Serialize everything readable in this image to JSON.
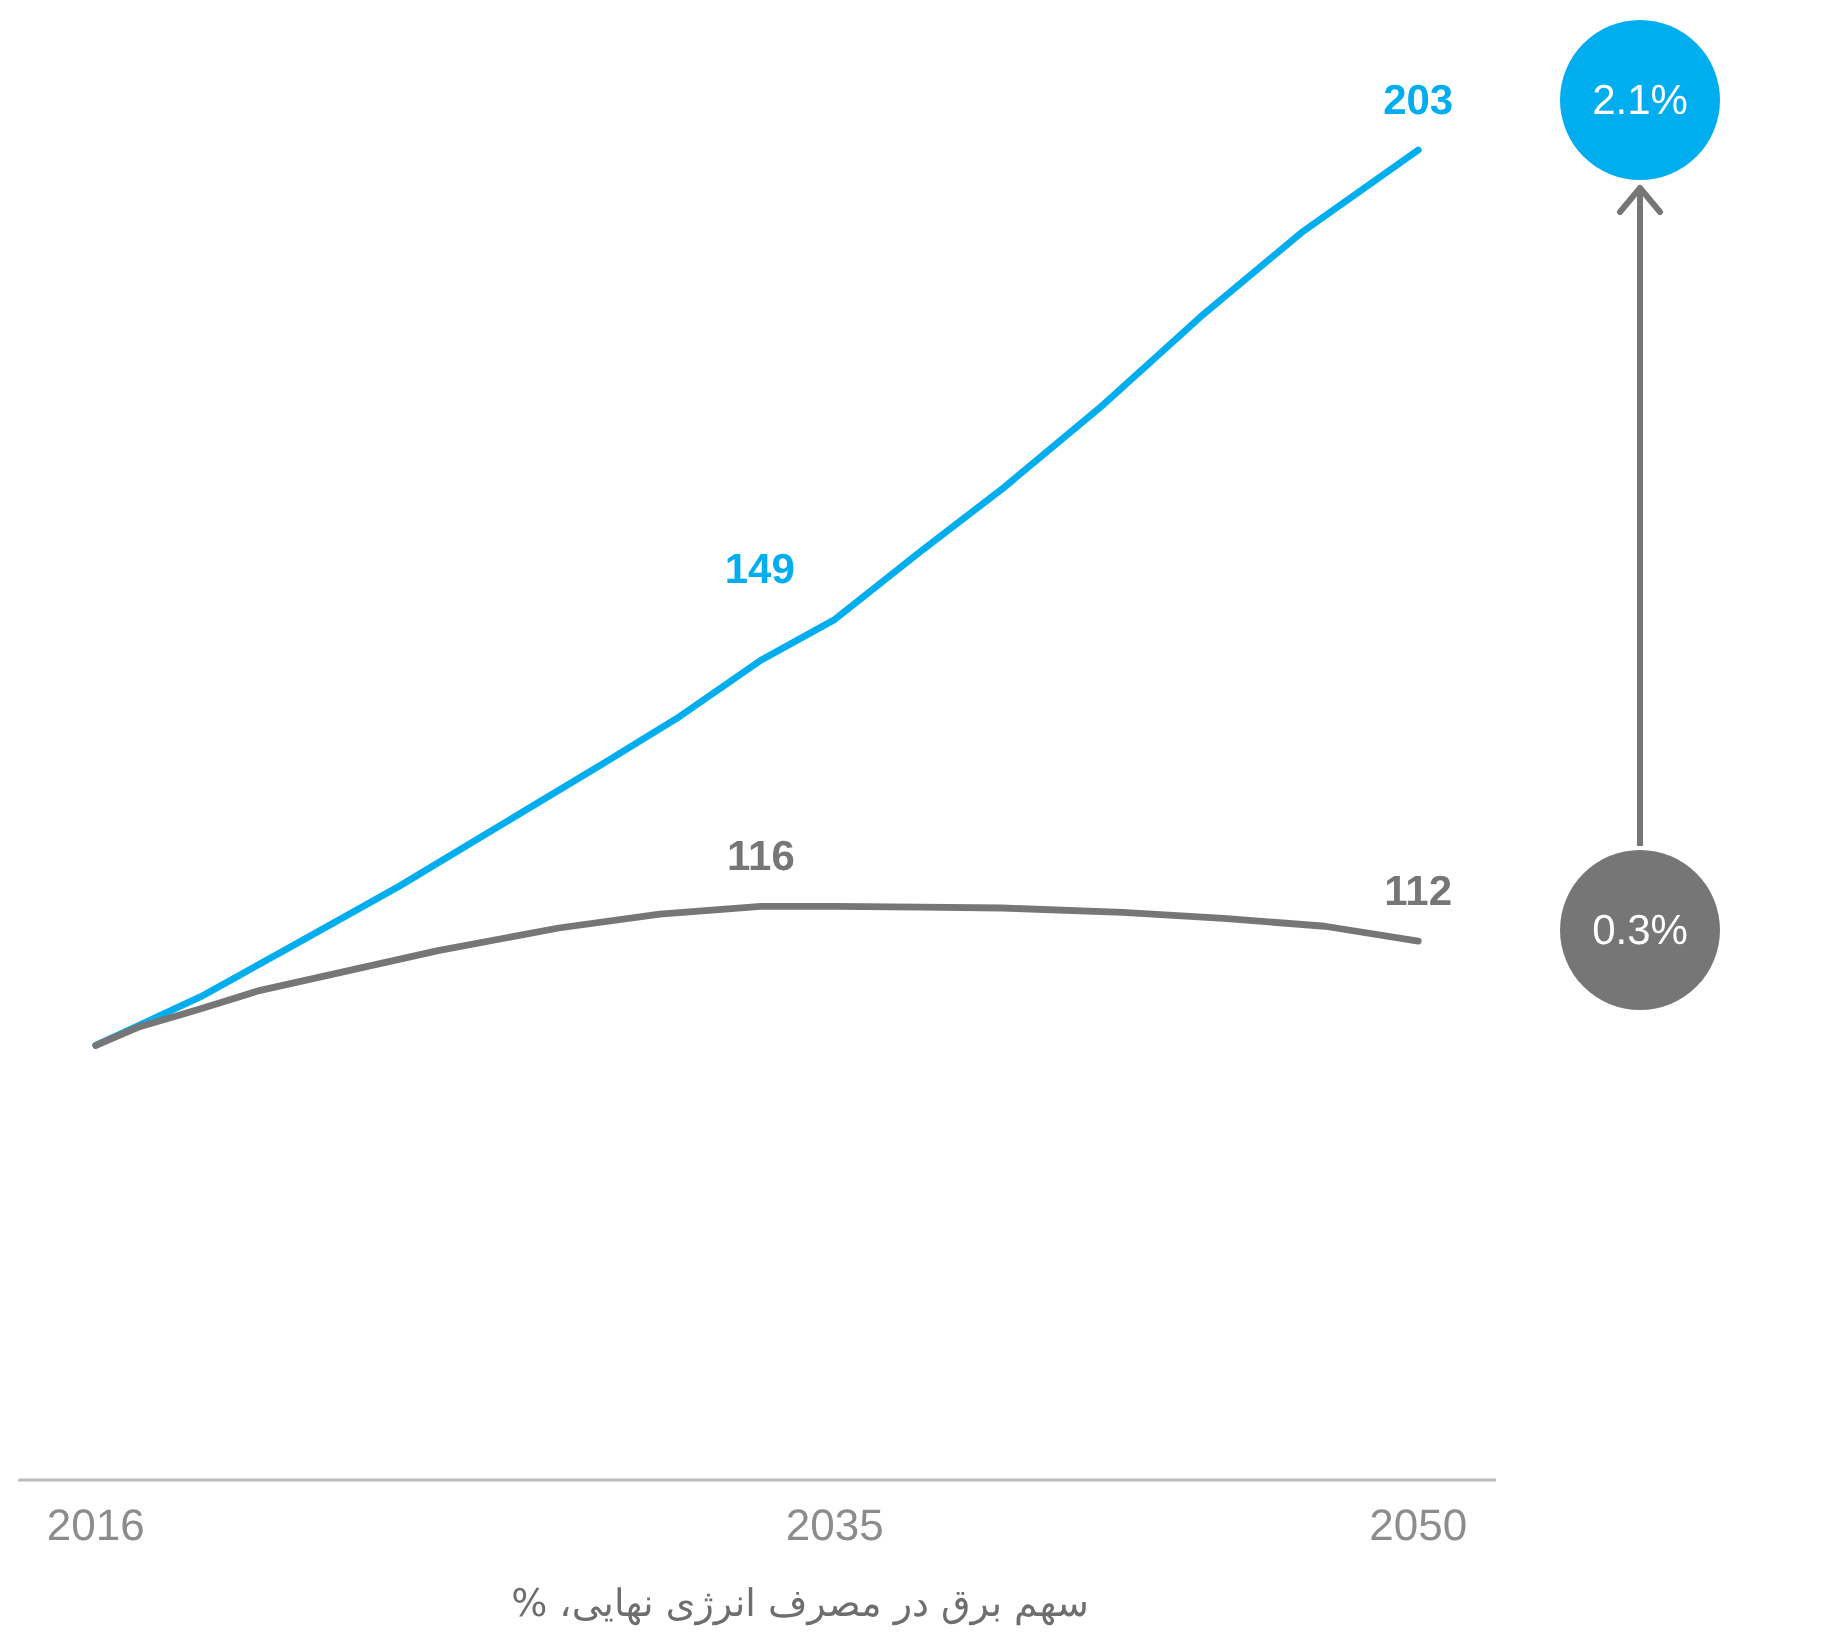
{
  "chart_data": {
    "type": "line",
    "xlabel": "سهم برق در مصرف انرژی نهایی، %",
    "xlim": [
      2014,
      2052
    ],
    "xticks": [
      2016,
      2035,
      2050
    ],
    "ylim": [
      50,
      203
    ],
    "tick_labels": "x",
    "marker": "none",
    "line_style": "solid",
    "series": [
      {
        "color": "#00aeef",
        "x": [
          2016,
          2018.7,
          2021.2,
          2023.8,
          2026.4,
          2029.0,
          2031.0,
          2033.1,
          2035,
          2037.2,
          2039.3,
          2041.8,
          2044.4,
          2047.0,
          2050
        ],
        "values": [
          100,
          105.6,
          111.8,
          118.3,
          125.3,
          132.3,
          137.8,
          144.3,
          149,
          156.8,
          164,
          173.3,
          183.8,
          193.5,
          203
        ],
        "value_labels": [
          null,
          null,
          null,
          null,
          null,
          null,
          null,
          null,
          "149",
          null,
          null,
          null,
          null,
          null,
          "203"
        ]
      },
      {
        "color": "#767676",
        "x": [
          2016,
          2017.1,
          2018.7,
          2020.2,
          2022.3,
          2024.8,
          2027.9,
          2030.5,
          2033.1,
          2035,
          2037.2,
          2039.3,
          2042.4,
          2045.0,
          2047.6,
          2050
        ],
        "values": [
          100,
          102.1,
          104.2,
          106.3,
          108.4,
          110.9,
          113.5,
          115.1,
          116,
          116,
          115.9,
          115.8,
          115.3,
          114.6,
          113.7,
          112
        ],
        "value_labels": [
          null,
          null,
          null,
          null,
          null,
          null,
          null,
          null,
          null,
          "116",
          null,
          null,
          null,
          null,
          null,
          "112"
        ]
      }
    ],
    "annotations": [
      "2.1%",
      "0.3%"
    ]
  }
}
